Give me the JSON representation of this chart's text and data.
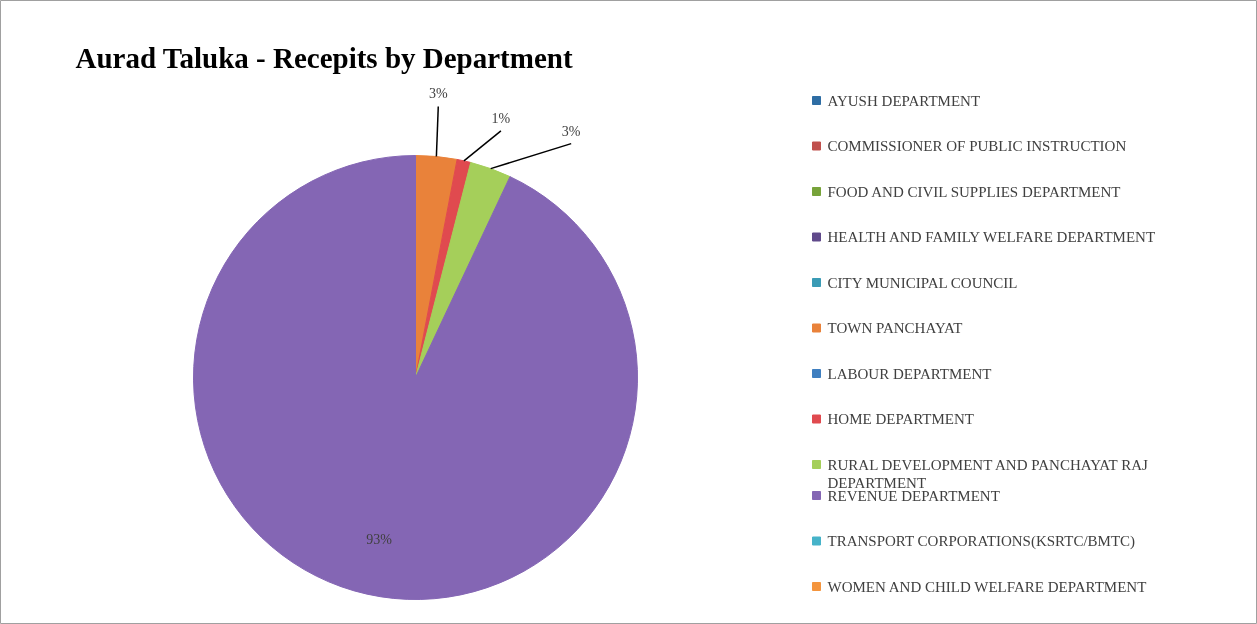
{
  "chart_data": {
    "type": "pie",
    "title": "Aurad Taluka - Recepits by Department",
    "categories": [
      "AYUSH DEPARTMENT",
      "COMMISSIONER OF PUBLIC INSTRUCTION",
      "FOOD AND CIVIL SUPPLIES DEPARTMENT",
      "HEALTH AND FAMILY WELFARE DEPARTMENT",
      "CITY MUNICIPAL COUNCIL",
      "TOWN PANCHAYAT",
      "LABOUR DEPARTMENT",
      "HOME DEPARTMENT",
      "RURAL DEVELOPMENT AND PANCHAYAT RAJ DEPARTMENT",
      "REVENUE DEPARTMENT",
      "TRANSPORT CORPORATIONS(KSRTC/BMTC)",
      "WOMEN AND CHILD WELFARE DEPARTMENT"
    ],
    "values": [
      0,
      0,
      0,
      0,
      0,
      3,
      0,
      1,
      3,
      93,
      0,
      0
    ],
    "colors": [
      "#2e6da4",
      "#c0504d",
      "#77a33a",
      "#604a8b",
      "#3a9bb5",
      "#e9823a",
      "#3f7fc0",
      "#e04a4f",
      "#a5cf5a",
      "#8466b4",
      "#46b3c9",
      "#f4953e"
    ],
    "value_labels": [
      null,
      null,
      null,
      null,
      null,
      "3%",
      null,
      "1%",
      "3%",
      "93%",
      null,
      null
    ],
    "legend": "right"
  }
}
